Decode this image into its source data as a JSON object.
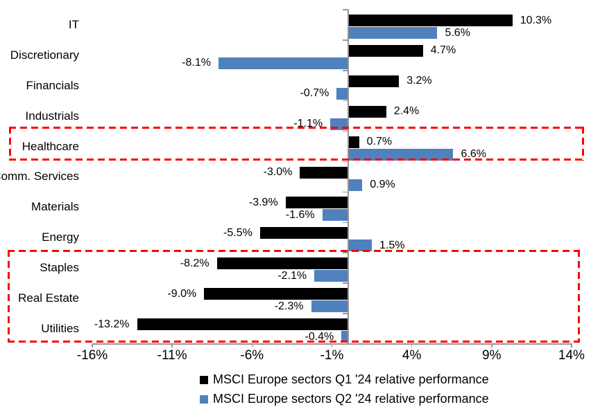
{
  "chart_data": {
    "type": "bar",
    "orientation": "horizontal",
    "title": "",
    "categories": [
      "IT",
      "Discretionary",
      "Financials",
      "Industrials",
      "Healthcare",
      "Comm. Services",
      "Materials",
      "Energy",
      "Staples",
      "Real Estate",
      "Utilities"
    ],
    "series": [
      {
        "name": "MSCI Europe sectors Q1 '24 relative performance",
        "color": "#000000",
        "values": [
          10.3,
          4.7,
          3.2,
          2.4,
          0.7,
          -3.0,
          -3.9,
          -5.5,
          -8.2,
          -9.0,
          -13.2
        ]
      },
      {
        "name": "MSCI Europe sectors Q2 '24 relative performance",
        "color": "#4F81BD",
        "values": [
          5.6,
          -8.1,
          -0.7,
          -1.1,
          6.6,
          0.9,
          -1.6,
          1.5,
          -2.1,
          -2.3,
          -0.4
        ]
      }
    ],
    "value_labels": [
      [
        "10.3%",
        "5.6%"
      ],
      [
        "4.7%",
        "-8.1%"
      ],
      [
        "3.2%",
        "-0.7%"
      ],
      [
        "2.4%",
        "-1.1%"
      ],
      [
        "0.7%",
        "6.6%"
      ],
      [
        "-3.0%",
        "0.9%"
      ],
      [
        "-3.9%",
        "-1.6%"
      ],
      [
        "-5.5%",
        "1.5%"
      ],
      [
        "-8.2%",
        "-2.1%"
      ],
      [
        "-9.0%",
        "-2.3%"
      ],
      [
        "-13.2%",
        "-0.4%"
      ]
    ],
    "x_axis": {
      "range": [
        -16,
        14
      ],
      "ticks": [
        -16,
        -11,
        -6,
        -1,
        4,
        9,
        14
      ],
      "tick_labels": [
        "-16%",
        "-11%",
        "-6%",
        "-1%",
        "4%",
        "9%",
        "14%"
      ]
    },
    "grid": false,
    "legend_position": "bottom",
    "highlight_boxes": [
      {
        "id": "healthcare-highlight",
        "categories": [
          "Healthcare"
        ],
        "color": "#FF0000",
        "line_style": "dashed"
      },
      {
        "id": "defensive-sectors-highlight",
        "categories": [
          "Staples",
          "Real Estate",
          "Utilities"
        ],
        "color": "#FF0000",
        "line_style": "dashed"
      }
    ]
  },
  "colors": {
    "axis": "#969696",
    "background": "#FFFFFF"
  }
}
